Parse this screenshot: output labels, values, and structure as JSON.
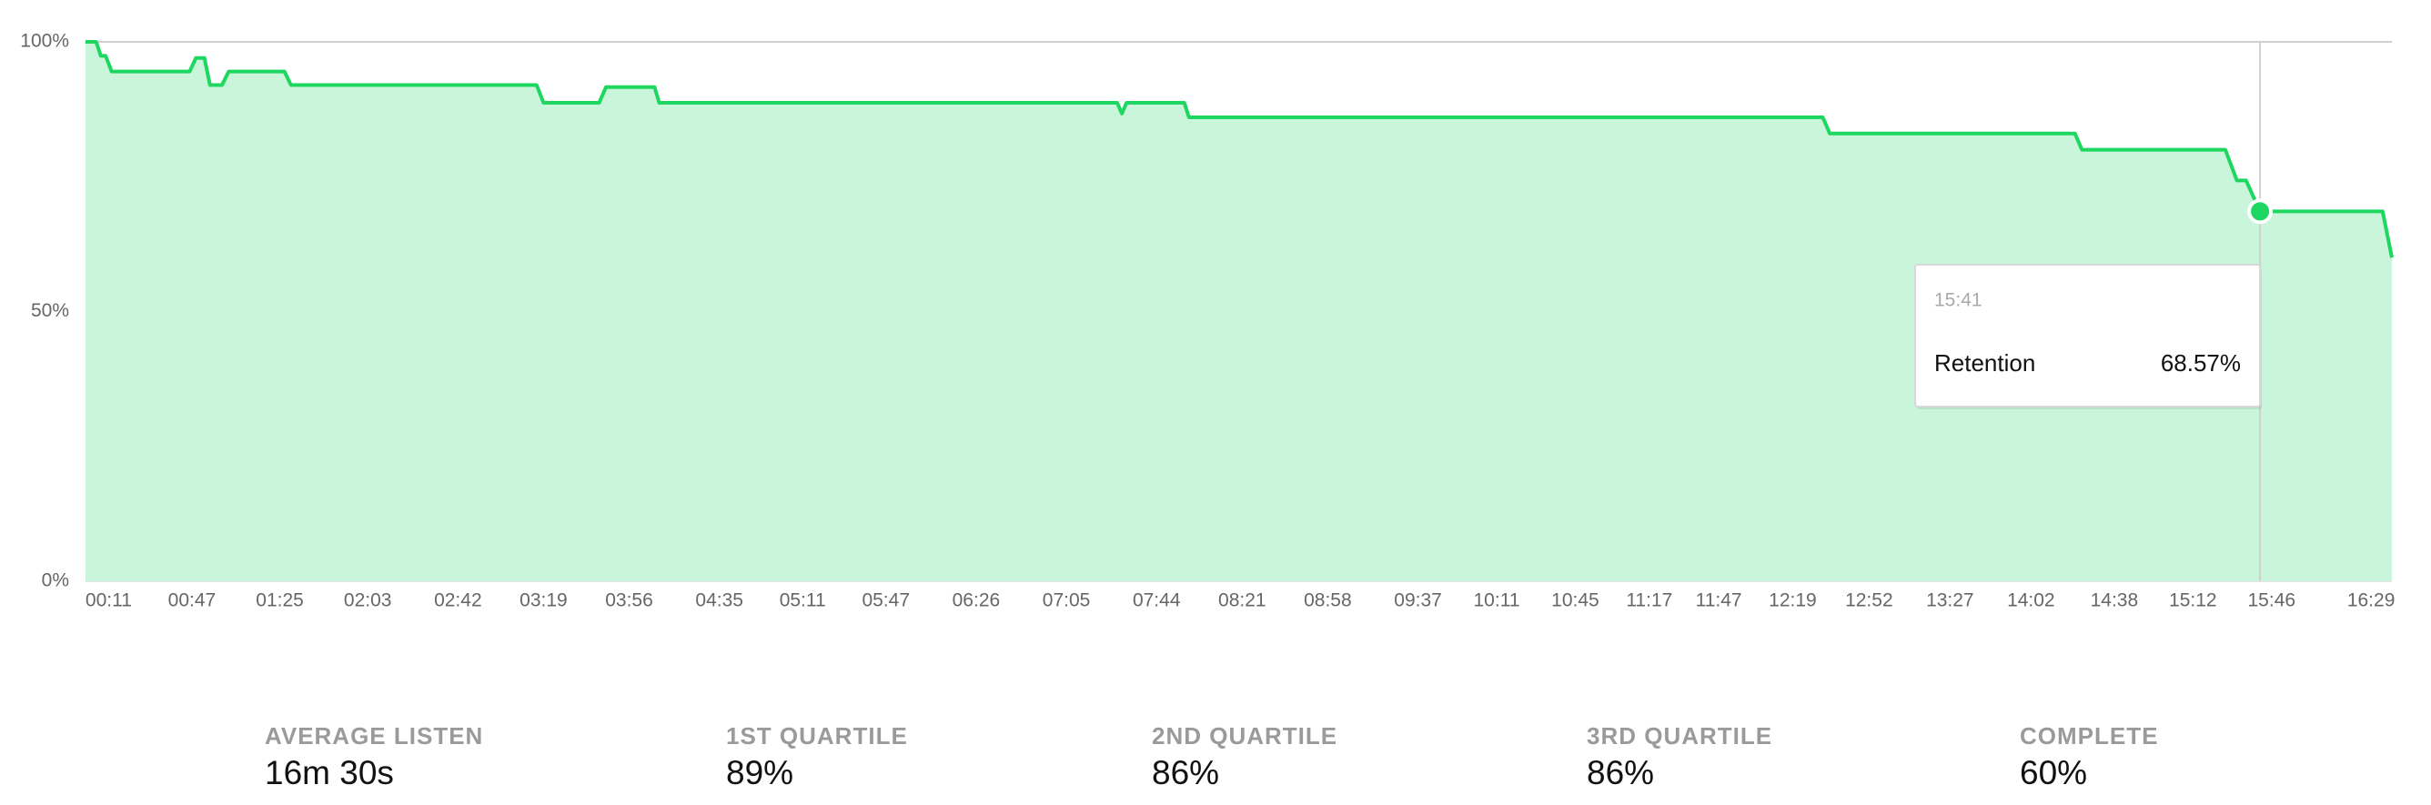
{
  "chart_data": {
    "type": "area",
    "series": [
      {
        "name": "Retention",
        "color": "#1ed760",
        "fill": "#c9f5da",
        "x": [
          1,
          5.6,
          7.6,
          9.7,
          12.3,
          46,
          48.7,
          52.4,
          54.8,
          60,
          62.9,
          87,
          89.8,
          196,
          199,
          223,
          226,
          247,
          249,
          447,
          449,
          451,
          476,
          478,
          752,
          755,
          861,
          864,
          926,
          931,
          935,
          938,
          941,
          994,
          998
        ],
        "values": [
          100,
          100,
          97.4,
          97.4,
          94.5,
          94.5,
          97,
          97,
          92,
          92,
          94.5,
          94.5,
          92,
          92,
          88.7,
          88.7,
          91.6,
          91.6,
          88.7,
          88.7,
          86.7,
          88.7,
          88.7,
          86,
          86,
          83,
          83,
          80,
          80,
          74.3,
          74.3,
          71.4,
          68.57,
          68.57,
          60
        ]
      }
    ],
    "xlim": [
      1,
      998
    ],
    "xticks": [
      {
        "value": 11,
        "label": "00:11"
      },
      {
        "value": 47,
        "label": "00:47"
      },
      {
        "value": 85,
        "label": "01:25"
      },
      {
        "value": 123,
        "label": "02:03"
      },
      {
        "value": 162,
        "label": "02:42"
      },
      {
        "value": 199,
        "label": "03:19"
      },
      {
        "value": 236,
        "label": "03:56"
      },
      {
        "value": 275,
        "label": "04:35"
      },
      {
        "value": 311,
        "label": "05:11"
      },
      {
        "value": 347,
        "label": "05:47"
      },
      {
        "value": 386,
        "label": "06:26"
      },
      {
        "value": 425,
        "label": "07:05"
      },
      {
        "value": 464,
        "label": "07:44"
      },
      {
        "value": 501,
        "label": "08:21"
      },
      {
        "value": 538,
        "label": "08:58"
      },
      {
        "value": 577,
        "label": "09:37"
      },
      {
        "value": 611,
        "label": "10:11"
      },
      {
        "value": 645,
        "label": "10:45"
      },
      {
        "value": 677,
        "label": "11:17"
      },
      {
        "value": 707,
        "label": "11:47"
      },
      {
        "value": 739,
        "label": "12:19"
      },
      {
        "value": 772,
        "label": "12:52"
      },
      {
        "value": 807,
        "label": "13:27"
      },
      {
        "value": 842,
        "label": "14:02"
      },
      {
        "value": 878,
        "label": "14:38"
      },
      {
        "value": 912,
        "label": "15:12"
      },
      {
        "value": 946,
        "label": "15:46"
      },
      {
        "value": 989,
        "label": "16:29"
      }
    ],
    "ylim": [
      0,
      100
    ],
    "yticks": [
      {
        "value": 0,
        "label": "0%"
      },
      {
        "value": 50,
        "label": "50%"
      },
      {
        "value": 100,
        "label": "100%"
      }
    ],
    "grid": true,
    "tooltip": {
      "x": 941,
      "x_label": "15:41",
      "value": 68.57,
      "value_label": "68.57%"
    }
  },
  "stats": [
    {
      "label": "AVERAGE LISTEN",
      "value": "16m 30s"
    },
    {
      "label": "1ST QUARTILE",
      "value": "89%"
    },
    {
      "label": "2ND QUARTILE",
      "value": "86%"
    },
    {
      "label": "3RD QUARTILE",
      "value": "86%"
    },
    {
      "label": "COMPLETE",
      "value": "60%"
    }
  ]
}
